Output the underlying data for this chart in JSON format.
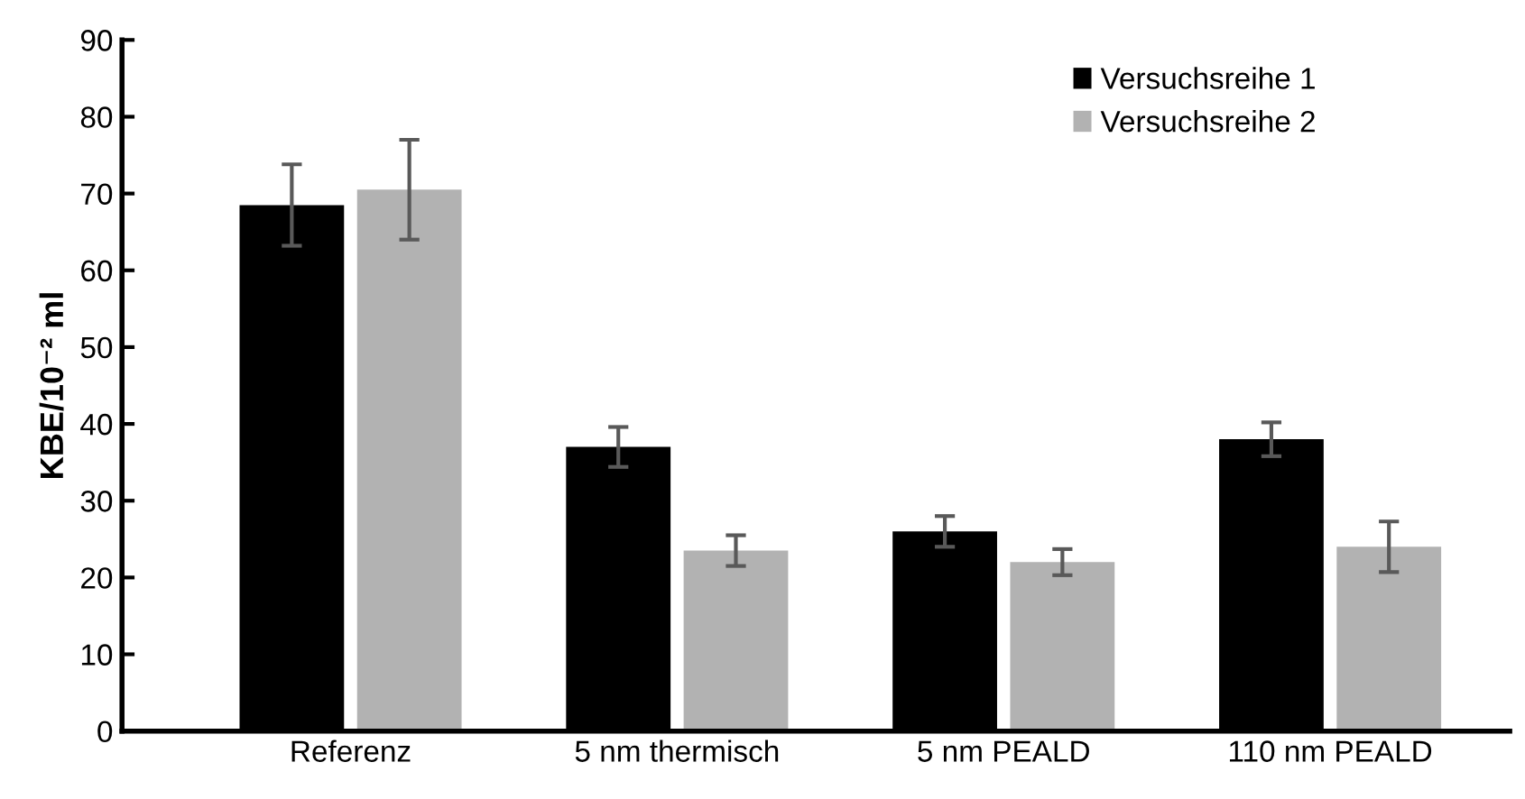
{
  "chart_data": {
    "type": "bar",
    "ylabel": "KBE/10⁻² ml",
    "categories": [
      "Referenz",
      "5 nm thermisch",
      "5 nm PEALD",
      "110 nm PEALD"
    ],
    "series": [
      {
        "name": "Versuchsreihe 1",
        "color": "#000000",
        "values": [
          68.5,
          37,
          26,
          38
        ],
        "errors": [
          5.3,
          2.6,
          2,
          2.2
        ]
      },
      {
        "name": "Versuchsreihe 2",
        "color": "#b2b2b2",
        "values": [
          70.5,
          23.5,
          22,
          24
        ],
        "errors": [
          6.5,
          2,
          1.7,
          3.3
        ]
      }
    ],
    "ylim": [
      0,
      90
    ],
    "yticks": [
      0,
      10,
      20,
      30,
      40,
      50,
      60,
      70,
      80,
      90
    ],
    "grid": false,
    "legend": "top right"
  }
}
